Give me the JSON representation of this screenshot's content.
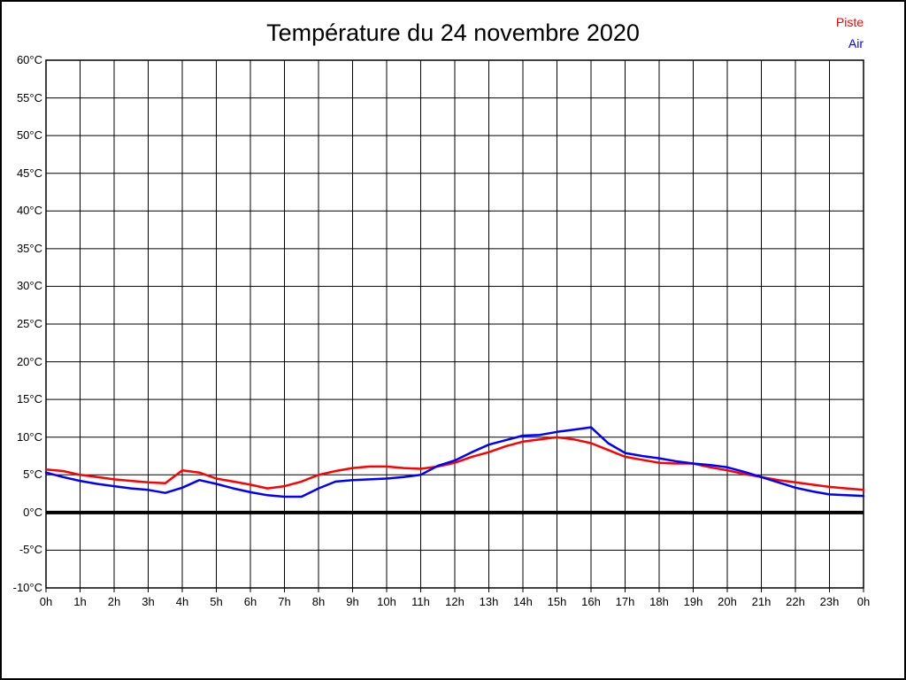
{
  "title": "Température du 24 novembre 2020",
  "legend": [
    {
      "label": "Piste",
      "color": "#ff0000"
    },
    {
      "label": "Air",
      "color": "#0000ff"
    }
  ],
  "colors": {
    "piste": "#ff0000",
    "air": "#0000ff",
    "grid": "#000000",
    "zero_line": "#000000",
    "background": "#ffffff"
  },
  "chart_data": {
    "type": "line",
    "title": "Température du 24 novembre 2020",
    "xlabel": "",
    "ylabel": "",
    "xlim": [
      0,
      24
    ],
    "ylim": [
      -10,
      60
    ],
    "grid": true,
    "zero_line": true,
    "legend_position": "top-right",
    "x_tick_labels": [
      "0h",
      "1h",
      "2h",
      "3h",
      "4h",
      "5h",
      "6h",
      "7h",
      "8h",
      "9h",
      "10h",
      "11h",
      "12h",
      "13h",
      "14h",
      "15h",
      "16h",
      "17h",
      "18h",
      "19h",
      "20h",
      "21h",
      "22h",
      "23h",
      "0h"
    ],
    "y_tick_labels": [
      "60°C",
      "55°C",
      "50°C",
      "45°C",
      "40°C",
      "35°C",
      "30°C",
      "25°C",
      "20°C",
      "15°C",
      "10°C",
      "5°C",
      "0°C",
      "-5°C",
      "-10°C"
    ],
    "y_tick_step": 5,
    "x_start": 0,
    "x_step": 0.5,
    "x_unit": "h",
    "y_unit": "°C",
    "series": [
      {
        "name": "Piste",
        "color": "#ff0000",
        "values": [
          5.7,
          5.5,
          5.0,
          4.7,
          4.4,
          4.2,
          4.0,
          3.9,
          5.6,
          5.3,
          4.5,
          4.1,
          3.7,
          3.2,
          3.5,
          4.1,
          5.0,
          5.5,
          5.9,
          6.1,
          6.1,
          5.9,
          5.8,
          6.1,
          6.6,
          7.4,
          8.0,
          8.8,
          9.4,
          9.7,
          10.0,
          9.7,
          9.2,
          8.3,
          7.4,
          7.0,
          6.6,
          6.5,
          6.5,
          6.0,
          5.6,
          5.1,
          4.7,
          4.3,
          4.0,
          3.7,
          3.4,
          3.2,
          3.0
        ]
      },
      {
        "name": "Air",
        "color": "#0000ff",
        "values": [
          5.3,
          4.7,
          4.2,
          3.8,
          3.5,
          3.2,
          3.0,
          2.6,
          3.3,
          4.3,
          3.8,
          3.2,
          2.7,
          2.3,
          2.1,
          2.1,
          3.2,
          4.1,
          4.3,
          4.4,
          4.5,
          4.7,
          5.0,
          6.2,
          6.9,
          8.0,
          9.0,
          9.6,
          10.2,
          10.3,
          10.7,
          11.0,
          11.3,
          9.2,
          7.9,
          7.5,
          7.2,
          6.8,
          6.5,
          6.3,
          6.0,
          5.4,
          4.7,
          4.0,
          3.3,
          2.8,
          2.4,
          2.3,
          2.2
        ]
      }
    ]
  }
}
